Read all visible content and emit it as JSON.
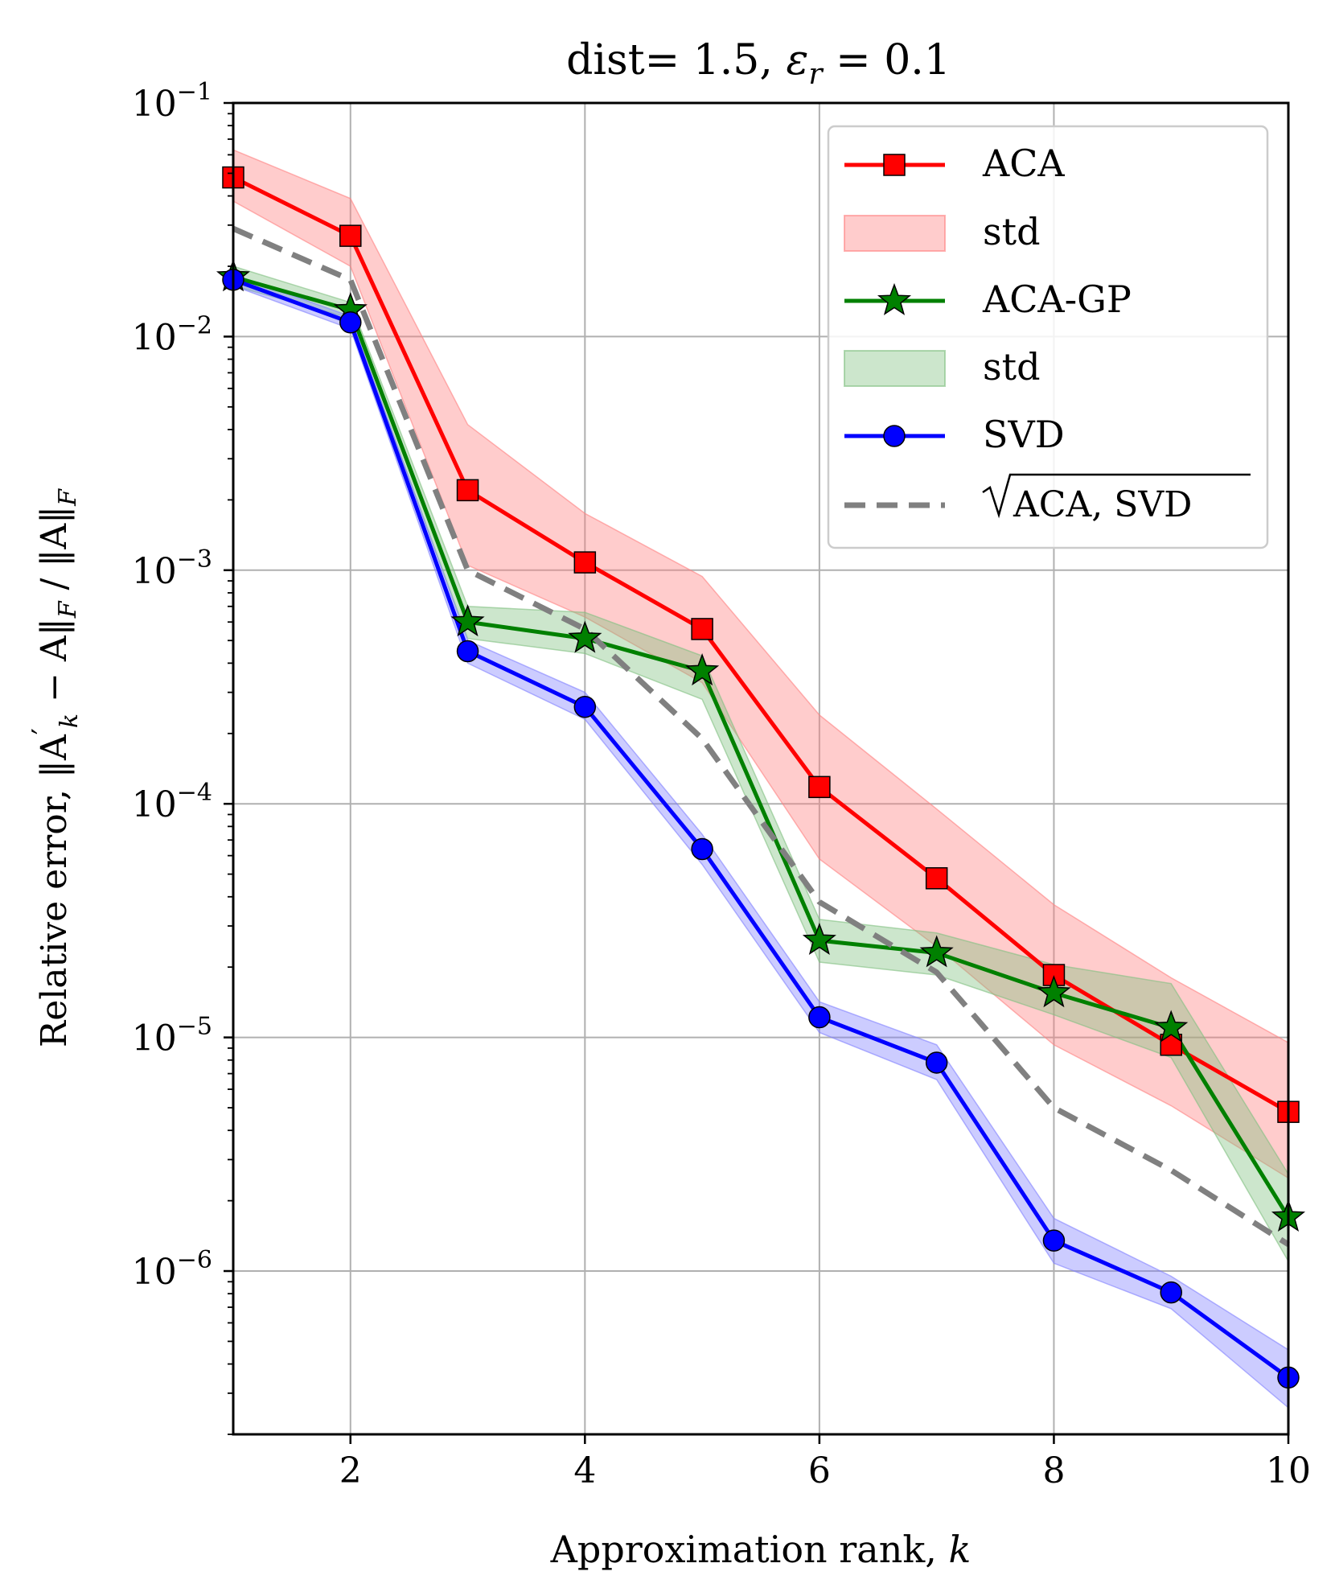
{
  "chart_data": {
    "type": "line",
    "title": "dist= 1.5, ε_r = 0.1",
    "title_parts": {
      "prefix": "dist= 1.5, ",
      "symbol": "ε",
      "subscript": "r",
      "suffix": " = 0.1"
    },
    "xlabel": "Approximation rank, k",
    "xlabel_parts": {
      "text": "Approximation rank, ",
      "var": "k"
    },
    "ylabel": "Relative error, ‖A'_k − A‖_F / ‖A‖_F",
    "ylabel_parts": {
      "prefix": "Relative error, ‖A",
      "prime": "′",
      "sub_k": "k",
      "middle": " − A‖",
      "sub_f1": "F",
      "slash": " / ‖A‖",
      "sub_f2": "F"
    },
    "yscale": "log",
    "xlim": [
      1,
      10
    ],
    "ylim": [
      2e-07,
      0.1
    ],
    "grid": true,
    "legend_position": "top-right",
    "x_ticks": [
      2,
      4,
      6,
      8,
      10
    ],
    "x_tick_labels": [
      "2",
      "4",
      "6",
      "8",
      "10"
    ],
    "y_ticks": [
      1e-06,
      1e-05,
      0.0001,
      0.001,
      0.01,
      0.1
    ],
    "y_tick_labels": [
      {
        "base": "10",
        "exp": "−6"
      },
      {
        "base": "10",
        "exp": "−5"
      },
      {
        "base": "10",
        "exp": "−4"
      },
      {
        "base": "10",
        "exp": "−3"
      },
      {
        "base": "10",
        "exp": "−2"
      },
      {
        "base": "10",
        "exp": "−1"
      }
    ],
    "x": [
      1,
      2,
      3,
      4,
      5,
      6,
      7,
      8,
      9,
      10
    ],
    "series": [
      {
        "name": "ACA",
        "color": "#ff0000",
        "marker": "square",
        "dash": false,
        "values": [
          0.048,
          0.027,
          0.0022,
          0.00108,
          0.00056,
          0.000118,
          4.8e-05,
          1.85e-05,
          9.3e-06,
          4.8e-06
        ],
        "std_lower": [
          0.038,
          0.02,
          0.00105,
          0.00063,
          0.00033,
          5.8e-05,
          2.45e-05,
          9.3e-06,
          5.1e-06,
          2.5e-06
        ],
        "std_upper": [
          0.063,
          0.039,
          0.0042,
          0.00175,
          0.00094,
          0.00024,
          9.5e-05,
          3.7e-05,
          1.8e-05,
          9.5e-06
        ],
        "std_label": "std",
        "std_color": "#ff8080"
      },
      {
        "name": "ACA-GP",
        "color": "#008000",
        "marker": "star",
        "dash": false,
        "values": [
          0.018,
          0.013,
          0.0006,
          0.00051,
          0.00037,
          2.6e-05,
          2.3e-05,
          1.55e-05,
          1.1e-05,
          1.7e-06
        ],
        "std_lower": [
          0.0165,
          0.012,
          0.00051,
          0.00044,
          0.00028,
          2.1e-05,
          1.85e-05,
          1.25e-05,
          8.2e-06,
          1.1e-06
        ],
        "std_upper": [
          0.02,
          0.014,
          0.0007,
          0.00066,
          0.00043,
          3.2e-05,
          2.8e-05,
          2.05e-05,
          1.7e-05,
          2.6e-06
        ],
        "std_label": "std",
        "std_color": "#80c080"
      },
      {
        "name": "SVD",
        "color": "#0000ff",
        "marker": "circle",
        "dash": false,
        "values": [
          0.0175,
          0.0115,
          0.00045,
          0.00026,
          6.4e-05,
          1.22e-05,
          7.8e-06,
          1.35e-06,
          8.1e-07,
          3.5e-07
        ],
        "std_lower": [
          0.0165,
          0.0108,
          0.0004,
          0.00023,
          5.5e-05,
          1.05e-05,
          6.6e-06,
          1.08e-06,
          6.9e-07,
          2.6e-07
        ],
        "std_upper": [
          0.0185,
          0.0122,
          0.0005,
          0.0003,
          7.4e-05,
          1.42e-05,
          9.3e-06,
          1.68e-06,
          9.5e-07,
          4.6e-07
        ],
        "std_color": "#8080ff"
      },
      {
        "name": "√ACA,SVD",
        "color": "#808080",
        "marker": "none",
        "dash": true,
        "values": [
          0.029,
          0.0175,
          0.001,
          0.00056,
          0.00019,
          3.8e-05,
          1.9e-05,
          5e-06,
          2.7e-06,
          1.3e-06
        ]
      }
    ],
    "legend": [
      {
        "label": "ACA",
        "kind": "line-square",
        "color": "#ff0000"
      },
      {
        "label": "std",
        "kind": "patch",
        "color": "#ff8080"
      },
      {
        "label": "ACA-GP",
        "kind": "line-star",
        "color": "#008000"
      },
      {
        "label": "std",
        "kind": "patch",
        "color": "#80c080"
      },
      {
        "label": "SVD",
        "kind": "line-circle",
        "color": "#0000ff"
      },
      {
        "label": "ACA, SVD",
        "kind": "dash-sqrt",
        "color": "#808080"
      }
    ]
  }
}
